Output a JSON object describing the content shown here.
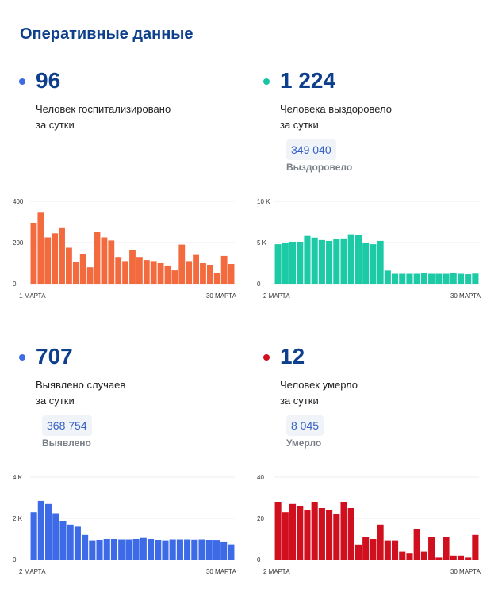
{
  "title": "Оперативные данные",
  "panels": [
    {
      "value": "96",
      "caption1": "Человек госпитализировано",
      "caption2": "за сутки",
      "dot_color": "#3d6be8"
    },
    {
      "value": "1 224",
      "caption1": "Человека выздоровело",
      "caption2": "за сутки",
      "total": "349 040",
      "total_label": "Выздоровело",
      "dot_color": "#18c4a3"
    },
    {
      "value": "707",
      "caption1": "Выявлено случаев",
      "caption2": "за сутки",
      "total": "368 754",
      "total_label": "Выявлено",
      "dot_color": "#3d6be8"
    },
    {
      "value": "12",
      "caption1": "Человек умерло",
      "caption2": "за сутки",
      "total": "8 045",
      "total_label": "Умерло",
      "dot_color": "#d0101e"
    }
  ],
  "chart_data": [
    {
      "type": "bar",
      "color": "#f26a3e",
      "ylim": [
        0,
        400
      ],
      "yticks": [
        {
          "v": 0,
          "label": "0"
        },
        {
          "v": 200,
          "label": "200"
        },
        {
          "v": 400,
          "label": "400"
        }
      ],
      "x_start_label": "1 МАРТА",
      "x_end_label": "30 МАРТА",
      "values": [
        295,
        345,
        225,
        245,
        270,
        175,
        105,
        145,
        80,
        250,
        225,
        210,
        130,
        110,
        165,
        130,
        115,
        110,
        100,
        85,
        65,
        190,
        110,
        140,
        100,
        90,
        50,
        135,
        96
      ]
    },
    {
      "type": "bar",
      "color": "#1ccaa6",
      "ylim": [
        0,
        10000
      ],
      "yticks": [
        {
          "v": 0,
          "label": "0"
        },
        {
          "v": 5000,
          "label": "5 K"
        },
        {
          "v": 10000,
          "label": "10 K"
        }
      ],
      "x_start_label": "2 МАРТА",
      "x_end_label": "30 МАРТА",
      "values": [
        4800,
        5000,
        5100,
        5100,
        5800,
        5600,
        5300,
        5200,
        5400,
        5500,
        6000,
        5900,
        5000,
        4800,
        5200,
        1600,
        1200,
        1200,
        1200,
        1200,
        1250,
        1200,
        1200,
        1200,
        1250,
        1200,
        1150,
        1224
      ]
    },
    {
      "type": "bar",
      "color": "#3d6be8",
      "ylim": [
        0,
        4000
      ],
      "yticks": [
        {
          "v": 0,
          "label": "0"
        },
        {
          "v": 2000,
          "label": "2 K"
        },
        {
          "v": 4000,
          "label": "4 K"
        }
      ],
      "x_start_label": "2 МАРТА",
      "x_end_label": "30 МАРТА",
      "values": [
        2300,
        2850,
        2700,
        2250,
        1850,
        1700,
        1600,
        1200,
        900,
        950,
        1000,
        1000,
        980,
        980,
        1000,
        1050,
        1000,
        950,
        900,
        980,
        980,
        980,
        970,
        980,
        950,
        920,
        850,
        707
      ]
    },
    {
      "type": "bar",
      "color": "#d0101e",
      "ylim": [
        0,
        40
      ],
      "yticks": [
        {
          "v": 0,
          "label": "0"
        },
        {
          "v": 20,
          "label": "20"
        },
        {
          "v": 40,
          "label": "40"
        }
      ],
      "x_start_label": "2 МАРТА",
      "x_end_label": "30 МАРТА",
      "values": [
        28,
        23,
        27,
        26,
        24,
        28,
        25,
        24,
        22,
        28,
        25,
        7,
        11,
        10,
        17,
        9,
        9,
        4,
        3,
        15,
        4,
        11,
        1,
        11,
        2,
        2,
        1,
        12
      ]
    }
  ]
}
